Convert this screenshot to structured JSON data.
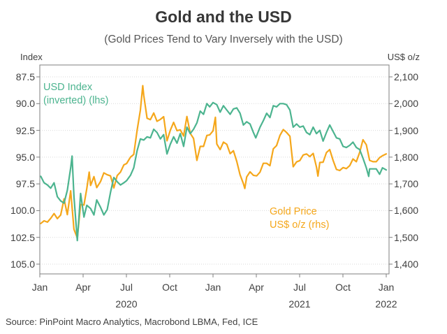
{
  "footer": {
    "source": "Source: PinPoint Macro Analytics, Macrobond LBMA, Fed, ICE"
  },
  "colors": {
    "usd_green": "#4CB48F",
    "gold_orange": "#F5A71B",
    "grid": "#d9d9d9",
    "frame": "#7f7f7f"
  },
  "chart_data": {
    "type": "line",
    "title": "Gold and the USD",
    "subtitle": "(Gold Prices Tend to Vary Inversely with the USD)",
    "left_axis": {
      "unit_label": "Index",
      "inverted": true,
      "tick_labels": [
        "87.5",
        "90.0",
        "92.5",
        "95.0",
        "97.5",
        "100.0",
        "102.5",
        "105.0"
      ],
      "tick_values": [
        87.5,
        90,
        92.5,
        95,
        97.5,
        100,
        102.5,
        105
      ]
    },
    "right_axis": {
      "unit_label": "US$ o/z",
      "tick_labels": [
        "2,100",
        "2,000",
        "1,900",
        "1,800",
        "1,700",
        "1,600",
        "1,500",
        "1,400"
      ],
      "tick_values": [
        2100,
        2000,
        1900,
        1800,
        1700,
        1600,
        1500,
        1400
      ]
    },
    "x_axis": {
      "span_months": 24,
      "ticks": [
        {
          "month": 0,
          "label": "Jan"
        },
        {
          "month": 3,
          "label": "Apr"
        },
        {
          "month": 6,
          "label": "Jul"
        },
        {
          "month": 9,
          "label": "Oct"
        },
        {
          "month": 12,
          "label": "Jan"
        },
        {
          "month": 15,
          "label": "Apr"
        },
        {
          "month": 18,
          "label": "Jul"
        },
        {
          "month": 21,
          "label": "Oct"
        },
        {
          "month": 24,
          "label": "Jan"
        }
      ],
      "years": [
        {
          "center_month": 6,
          "label": "2020"
        },
        {
          "center_month": 18,
          "label": "2021"
        },
        {
          "center_month": 24,
          "label": "2022"
        }
      ]
    },
    "legends": [
      {
        "line1": "USD Index",
        "line2": "(inverted) (lhs)",
        "color": "#4CB48F"
      },
      {
        "line1": "Gold Price",
        "line2": "US$ o/z (rhs)",
        "color": "#F5A71B"
      }
    ],
    "series": [
      {
        "name": "USD Index (inverted) (lhs)",
        "axis": "left",
        "color": "#4CB48F",
        "points": [
          [
            2,
            96.8
          ],
          [
            9,
            97.4
          ],
          [
            16,
            97.6
          ],
          [
            23,
            97.9
          ],
          [
            30,
            97.4
          ],
          [
            37,
            98.7
          ],
          [
            44,
            99.1
          ],
          [
            51,
            99.3
          ],
          [
            58,
            98.1
          ],
          [
            65,
            96.0
          ],
          [
            68,
            94.9
          ],
          [
            72,
            98.7
          ],
          [
            79,
            102.8
          ],
          [
            86,
            98.4
          ],
          [
            93,
            100.6
          ],
          [
            99,
            99.5
          ],
          [
            107,
            99.8
          ],
          [
            114,
            100.4
          ],
          [
            120,
            99.0
          ],
          [
            128,
            99.7
          ],
          [
            135,
            100.4
          ],
          [
            142,
            99.9
          ],
          [
            149,
            98.3
          ],
          [
            156,
            96.9
          ],
          [
            163,
            97.3
          ],
          [
            170,
            97.6
          ],
          [
            177,
            97.4
          ],
          [
            183,
            97.2
          ],
          [
            191,
            96.7
          ],
          [
            198,
            96.0
          ],
          [
            205,
            94.4
          ],
          [
            212,
            93.3
          ],
          [
            219,
            93.4
          ],
          [
            226,
            93.1
          ],
          [
            233,
            93.2
          ],
          [
            240,
            92.4
          ],
          [
            247,
            92.7
          ],
          [
            254,
            93.3
          ],
          [
            261,
            92.9
          ],
          [
            268,
            94.7
          ],
          [
            275,
            93.8
          ],
          [
            282,
            93.1
          ],
          [
            289,
            93.7
          ],
          [
            296,
            92.8
          ],
          [
            303,
            94.0
          ],
          [
            310,
            92.2
          ],
          [
            317,
            92.8
          ],
          [
            324,
            92.4
          ],
          [
            331,
            91.8
          ],
          [
            338,
            90.7
          ],
          [
            345,
            91.0
          ],
          [
            352,
            90.0
          ],
          [
            358,
            90.3
          ],
          [
            365,
            89.9
          ],
          [
            373,
            90.1
          ],
          [
            380,
            90.8
          ],
          [
            387,
            90.2
          ],
          [
            394,
            90.6
          ],
          [
            401,
            91.0
          ],
          [
            408,
            90.5
          ],
          [
            415,
            90.4
          ],
          [
            422,
            90.9
          ],
          [
            429,
            92.0
          ],
          [
            436,
            91.7
          ],
          [
            443,
            91.9
          ],
          [
            450,
            92.7
          ],
          [
            455,
            93.2
          ],
          [
            464,
            92.2
          ],
          [
            471,
            91.6
          ],
          [
            478,
            90.9
          ],
          [
            485,
            91.3
          ],
          [
            492,
            90.2
          ],
          [
            499,
            90.3
          ],
          [
            506,
            90.0
          ],
          [
            513,
            90.0
          ],
          [
            520,
            90.1
          ],
          [
            527,
            90.6
          ],
          [
            534,
            92.2
          ],
          [
            541,
            91.9
          ],
          [
            548,
            92.2
          ],
          [
            555,
            92.1
          ],
          [
            562,
            92.7
          ],
          [
            569,
            92.9
          ],
          [
            576,
            92.2
          ],
          [
            583,
            92.8
          ],
          [
            590,
            92.5
          ],
          [
            597,
            93.5
          ],
          [
            604,
            92.7
          ],
          [
            611,
            92.0
          ],
          [
            618,
            92.6
          ],
          [
            625,
            93.2
          ],
          [
            632,
            93.3
          ],
          [
            639,
            94.0
          ],
          [
            646,
            94.1
          ],
          [
            653,
            93.9
          ],
          [
            660,
            93.6
          ],
          [
            667,
            94.1
          ],
          [
            674,
            94.3
          ],
          [
            681,
            95.1
          ],
          [
            688,
            96.0
          ],
          [
            693,
            96.8
          ],
          [
            695,
            96.1
          ],
          [
            702,
            96.1
          ],
          [
            709,
            96.1
          ],
          [
            716,
            96.6
          ],
          [
            722,
            96.0
          ],
          [
            730,
            96.2
          ]
        ]
      },
      {
        "name": "Gold Price US$ o/z (rhs)",
        "axis": "right",
        "color": "#F5A71B",
        "points": [
          [
            2,
            1552
          ],
          [
            9,
            1562
          ],
          [
            16,
            1557
          ],
          [
            23,
            1571
          ],
          [
            30,
            1589
          ],
          [
            37,
            1570
          ],
          [
            44,
            1584
          ],
          [
            51,
            1644
          ],
          [
            58,
            1585
          ],
          [
            65,
            1674
          ],
          [
            72,
            1530
          ],
          [
            79,
            1498
          ],
          [
            86,
            1623
          ],
          [
            93,
            1621
          ],
          [
            99,
            1683
          ],
          [
            104,
            1744
          ],
          [
            107,
            1694
          ],
          [
            114,
            1727
          ],
          [
            120,
            1686
          ],
          [
            128,
            1709
          ],
          [
            135,
            1741
          ],
          [
            142,
            1734
          ],
          [
            149,
            1730
          ],
          [
            156,
            1685
          ],
          [
            163,
            1731
          ],
          [
            170,
            1744
          ],
          [
            177,
            1771
          ],
          [
            183,
            1776
          ],
          [
            191,
            1800
          ],
          [
            198,
            1810
          ],
          [
            205,
            1900
          ],
          [
            212,
            1976
          ],
          [
            217,
            2067
          ],
          [
            219,
            2031
          ],
          [
            226,
            1945
          ],
          [
            233,
            1940
          ],
          [
            240,
            1965
          ],
          [
            247,
            1934
          ],
          [
            254,
            1941
          ],
          [
            261,
            1951
          ],
          [
            268,
            1861
          ],
          [
            275,
            1900
          ],
          [
            282,
            1930
          ],
          [
            289,
            1899
          ],
          [
            296,
            1902
          ],
          [
            303,
            1879
          ],
          [
            310,
            1952
          ],
          [
            317,
            1889
          ],
          [
            324,
            1870
          ],
          [
            331,
            1788
          ],
          [
            338,
            1840
          ],
          [
            345,
            1840
          ],
          [
            352,
            1881
          ],
          [
            358,
            1883
          ],
          [
            365,
            1898
          ],
          [
            370,
            1949
          ],
          [
            373,
            1849
          ],
          [
            380,
            1828
          ],
          [
            387,
            1856
          ],
          [
            394,
            1848
          ],
          [
            401,
            1813
          ],
          [
            408,
            1824
          ],
          [
            415,
            1784
          ],
          [
            422,
            1734
          ],
          [
            429,
            1701
          ],
          [
            432,
            1683
          ],
          [
            436,
            1726
          ],
          [
            443,
            1745
          ],
          [
            450,
            1732
          ],
          [
            457,
            1730
          ],
          [
            464,
            1744
          ],
          [
            471,
            1777
          ],
          [
            478,
            1777
          ],
          [
            485,
            1768
          ],
          [
            492,
            1831
          ],
          [
            499,
            1843
          ],
          [
            506,
            1881
          ],
          [
            513,
            1903
          ],
          [
            520,
            1892
          ],
          [
            527,
            1878
          ],
          [
            534,
            1764
          ],
          [
            541,
            1782
          ],
          [
            548,
            1787
          ],
          [
            555,
            1808
          ],
          [
            562,
            1812
          ],
          [
            569,
            1802
          ],
          [
            576,
            1814
          ],
          [
            583,
            1763
          ],
          [
            586,
            1729
          ],
          [
            590,
            1780
          ],
          [
            597,
            1781
          ],
          [
            604,
            1817
          ],
          [
            611,
            1828
          ],
          [
            618,
            1788
          ],
          [
            625,
            1754
          ],
          [
            632,
            1750
          ],
          [
            639,
            1761
          ],
          [
            646,
            1757
          ],
          [
            653,
            1768
          ],
          [
            660,
            1793
          ],
          [
            667,
            1783
          ],
          [
            674,
            1818
          ],
          [
            681,
            1865
          ],
          [
            688,
            1846
          ],
          [
            695,
            1788
          ],
          [
            702,
            1783
          ],
          [
            709,
            1783
          ],
          [
            716,
            1798
          ],
          [
            722,
            1805
          ],
          [
            730,
            1812
          ]
        ]
      }
    ]
  }
}
